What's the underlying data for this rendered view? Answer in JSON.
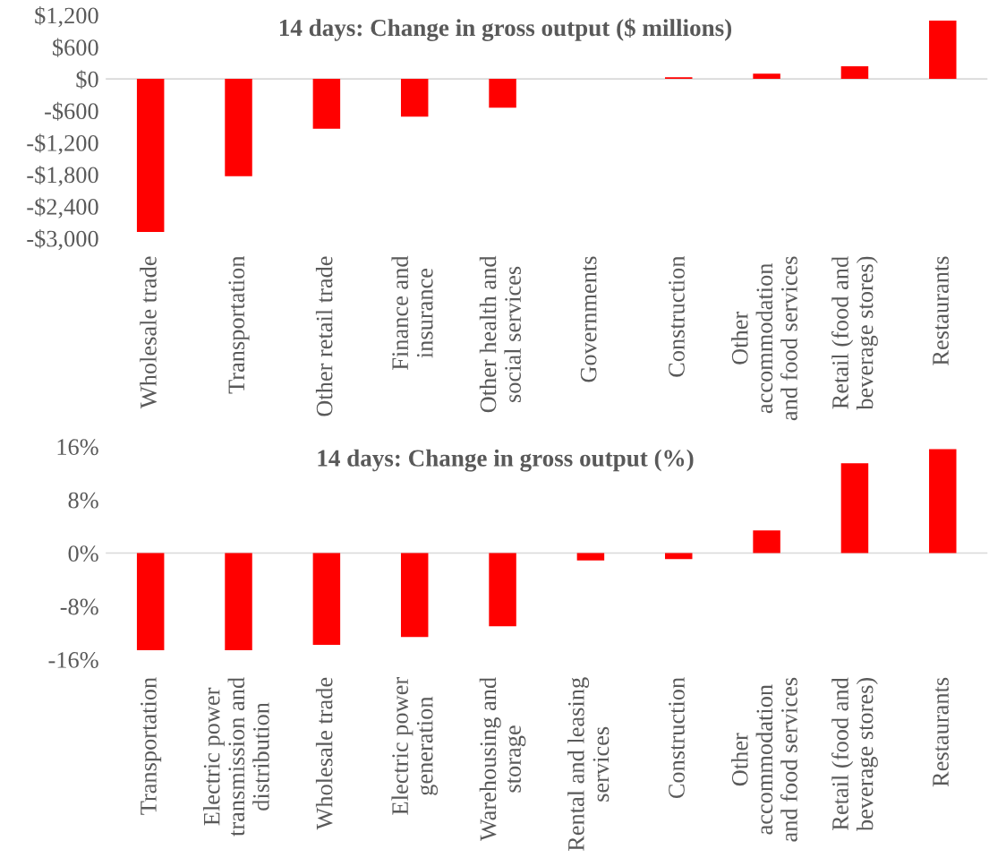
{
  "chart_data": [
    {
      "type": "bar",
      "title": "14 days: Change in gross output ($ millions)",
      "categories": [
        "Wholesale trade",
        "Transportation",
        "Other retail trade",
        "Finance and\ninsurance",
        "Other health and\nsocial services",
        "Governments",
        "Construction",
        "Other\naccommodation\nand food services",
        "Retail (food and\nbeverage stores)",
        "Restaurants"
      ],
      "values": [
        -2880,
        -1830,
        -940,
        -710,
        -540,
        0,
        30,
        100,
        240,
        1100
      ],
      "color": "#ff0000",
      "ylim": [
        -3000,
        1200
      ],
      "yticks": [
        {
          "value": -3000,
          "label": "-$3,000"
        },
        {
          "value": -2400,
          "label": "-$2,400"
        },
        {
          "value": -1800,
          "label": "-$1,800"
        },
        {
          "value": -1200,
          "label": "-$1,200"
        },
        {
          "value": -600,
          "label": "-$600"
        },
        {
          "value": 0,
          "label": "$0"
        },
        {
          "value": 600,
          "label": "$600"
        },
        {
          "value": 1200,
          "label": "$1,200"
        }
      ]
    },
    {
      "type": "bar",
      "title": "14 days: Change in gross output (%)",
      "categories": [
        "Transportation",
        "Electric power\ntransmission and\ndistribution",
        "Wholesale trade",
        "Electric power\ngeneration",
        "Warehousing and\nstorage",
        "Rental and leasing\nservices",
        "Construction",
        "Other\naccommodation\nand food services",
        "Retail (food and\nbeverage stores)",
        "Restaurants"
      ],
      "values": [
        -14.6,
        -14.6,
        -13.8,
        -12.6,
        -11.0,
        -1.1,
        -0.9,
        3.4,
        13.5,
        15.6
      ],
      "color": "#ff0000",
      "ylim": [
        -16,
        16
      ],
      "yticks": [
        {
          "value": -16,
          "label": "-16%"
        },
        {
          "value": -8,
          "label": "-8%"
        },
        {
          "value": 0,
          "label": "0%"
        },
        {
          "value": 8,
          "label": "8%"
        },
        {
          "value": 16,
          "label": "16%"
        }
      ]
    }
  ]
}
